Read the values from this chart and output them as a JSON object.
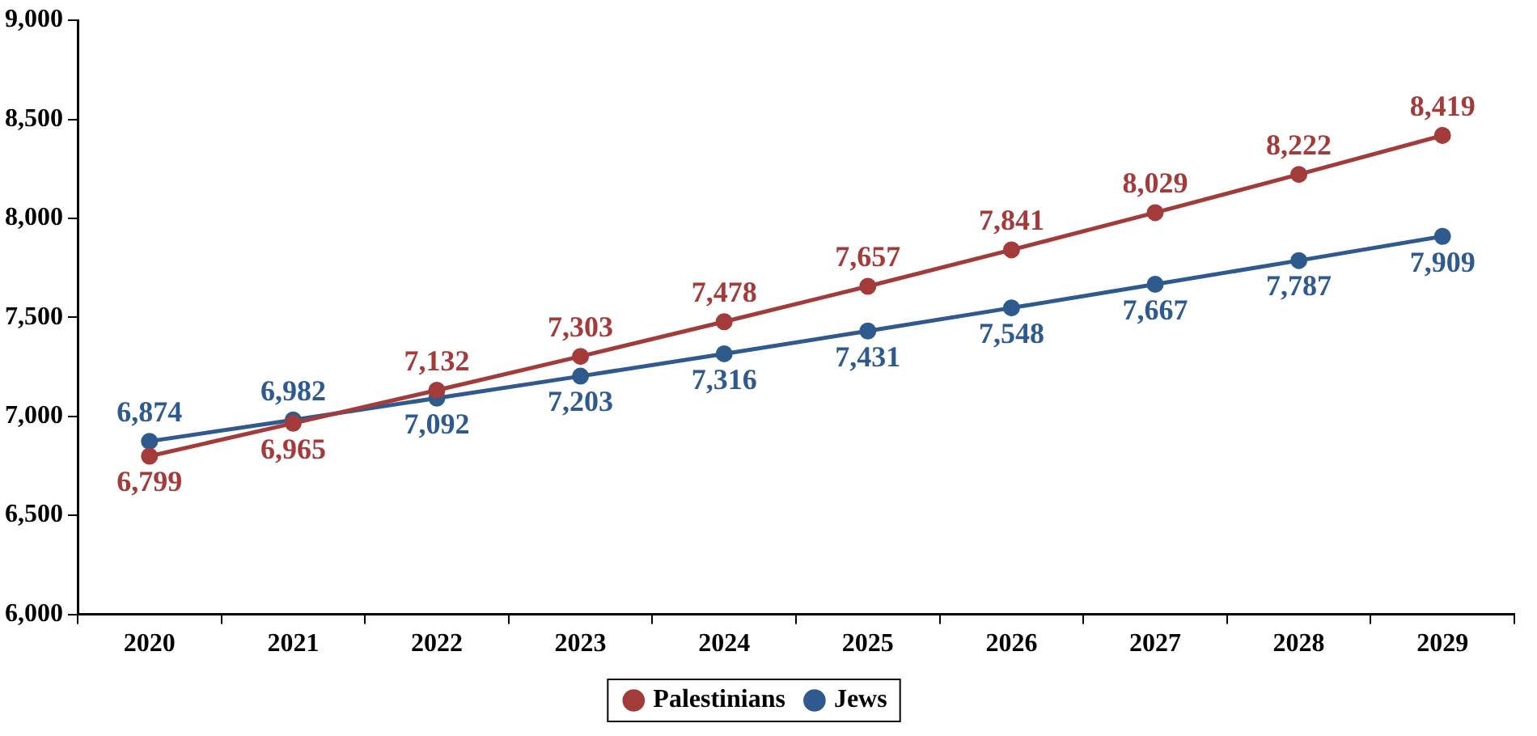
{
  "chart_data": {
    "type": "line",
    "categories": [
      "2020",
      "2021",
      "2022",
      "2023",
      "2024",
      "2025",
      "2026",
      "2027",
      "2028",
      "2029"
    ],
    "series": [
      {
        "name": "Palestinians",
        "color": "#a33b3b",
        "values": [
          6799,
          6965,
          7132,
          7303,
          7478,
          7657,
          7841,
          8029,
          8222,
          8419
        ],
        "value_labels": [
          "6,799",
          "6,965",
          "7,132",
          "7,303",
          "7,478",
          "7,657",
          "7,841",
          "8,029",
          "8,222",
          "8,419"
        ]
      },
      {
        "name": "Jews",
        "color": "#2f5a8e",
        "values": [
          6874,
          6982,
          7092,
          7203,
          7316,
          7431,
          7548,
          7667,
          7787,
          7909
        ],
        "value_labels": [
          "6,874",
          "6,982",
          "7,092",
          "7,203",
          "7,316",
          "7,431",
          "7,548",
          "7,667",
          "7,787",
          "7,909"
        ]
      }
    ],
    "ylim": [
      6000,
      9000
    ],
    "yticks": [
      {
        "value": 6000,
        "label": "6,000"
      },
      {
        "value": 6500,
        "label": "6,500"
      },
      {
        "value": 7000,
        "label": "7,000"
      },
      {
        "value": 7500,
        "label": "7,500"
      },
      {
        "value": 8000,
        "label": "8,000"
      },
      {
        "value": 8500,
        "label": "8,500"
      },
      {
        "value": 9000,
        "label": "9,000"
      }
    ],
    "grid": false,
    "legend": "bottom",
    "marker": "circle",
    "line_style": "solid"
  }
}
